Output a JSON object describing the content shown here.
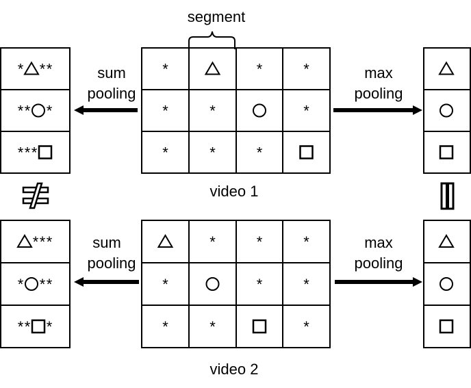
{
  "segment_label": "segment",
  "pooling": {
    "sum_label_line1": "sum",
    "sum_label_line2": "pooling",
    "max_label_line1": "max",
    "max_label_line2": "pooling"
  },
  "relation_symbols": {
    "sum": "not-equal-icon",
    "max": "equal-icon"
  },
  "videos": [
    {
      "label": "video 1",
      "grid": [
        [
          "*",
          "triangle",
          "*",
          "*"
        ],
        [
          "*",
          "*",
          "circle",
          "*"
        ],
        [
          "*",
          "*",
          "*",
          "square"
        ]
      ],
      "sum_result": [
        [
          "*",
          "triangle",
          "*",
          "*"
        ],
        [
          "*",
          "*",
          "circle",
          "*"
        ],
        [
          "*",
          "*",
          "*",
          "square"
        ]
      ],
      "max_result": [
        "triangle",
        "circle",
        "square"
      ]
    },
    {
      "label": "video 2",
      "grid": [
        [
          "triangle",
          "*",
          "*",
          "*"
        ],
        [
          "*",
          "circle",
          "*",
          "*"
        ],
        [
          "*",
          "*",
          "square",
          "*"
        ]
      ],
      "sum_result": [
        [
          "triangle",
          "*",
          "*",
          "*"
        ],
        [
          "*",
          "circle",
          "*",
          "*"
        ],
        [
          "*",
          "*",
          "square",
          "*"
        ]
      ],
      "max_result": [
        "triangle",
        "circle",
        "square"
      ]
    }
  ]
}
